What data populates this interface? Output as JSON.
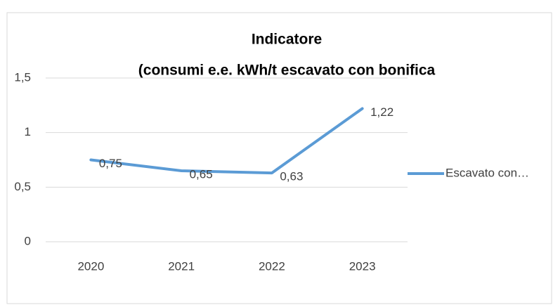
{
  "chart_data": {
    "type": "line",
    "title": [
      "Indicatore",
      "(consumi e.e. kWh/t escavato con bonifica"
    ],
    "categories": [
      "2020",
      "2021",
      "2022",
      "2023"
    ],
    "series": [
      {
        "name": "Escavato con…",
        "color": "#5b9bd5",
        "values": [
          0.75,
          0.65,
          0.63,
          1.22
        ],
        "value_labels": [
          "0,75",
          "0,65",
          "0,63",
          "1,22"
        ]
      }
    ],
    "ylim": [
      0,
      1.5
    ],
    "yticks": [
      0,
      {
        "value": 0.5,
        "label": "0,5"
      },
      1,
      {
        "value": 1.5,
        "label": "1,5"
      }
    ],
    "grid": true,
    "legend": "right"
  }
}
